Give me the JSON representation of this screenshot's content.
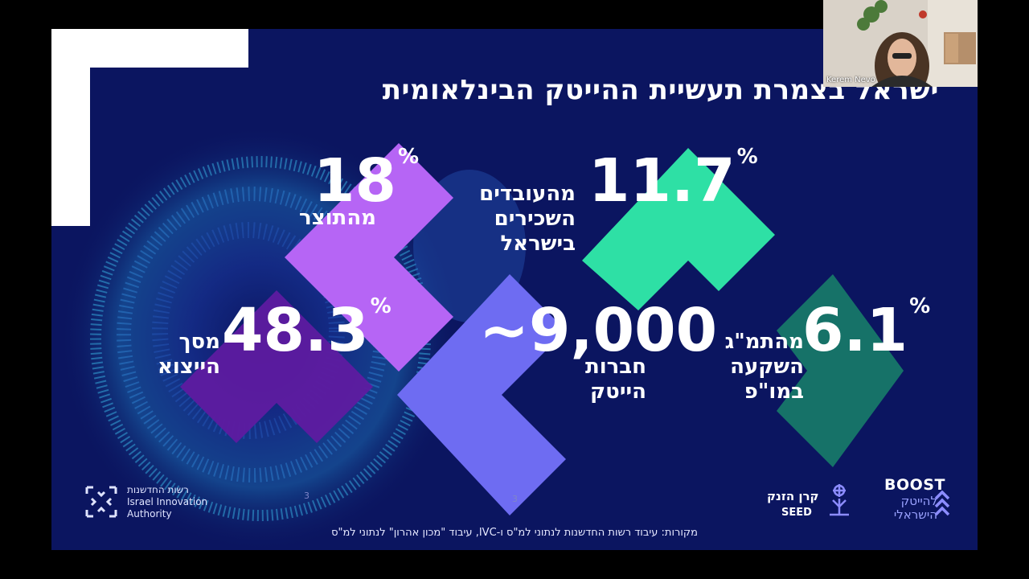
{
  "slide": {
    "title": "ישראל בצמרת תעשיית ההייטק הבינלאומית",
    "stats": [
      {
        "value": "18",
        "unit": "%",
        "label": "מהתוצר",
        "color": "#b665f5"
      },
      {
        "value": "11.7",
        "unit": "%",
        "label": "מהעובדים\nהשכירים\nבישראל",
        "color": "#2ee0a5"
      },
      {
        "value": "48.3",
        "unit": "%",
        "label": "מסך\nהייצוא",
        "color": "#5e1ba0"
      },
      {
        "value": "~9,000",
        "unit": "",
        "label": "חברות\nהייטק",
        "color": "#6e6cf2"
      },
      {
        "value": "6.1",
        "unit": "%",
        "label": "מהתמ\"ג\nהשקעה\nבמו\"פ",
        "color": "#167268"
      }
    ],
    "page_number": "3",
    "page_number_faint": "3",
    "source": "מקורות: עיבוד רשות החדשנות לנתוני למ\"ס ו-IVC, עיבוד \"מכון אהרון\" לנתוני למ\"ס",
    "logos": {
      "innovation_authority": "רשות החדשנות\nIsrael Innovation\nAuthority",
      "seed_he": "קרן הזנק",
      "seed_en": "SEED",
      "boost_en": "BOOST",
      "boost_he": "להייטק\nהישראלי"
    },
    "colors": {
      "background": "#0b1560",
      "accent": "#2ee0a5"
    }
  },
  "video_call": {
    "participant_name": "Kerem Nevo"
  }
}
